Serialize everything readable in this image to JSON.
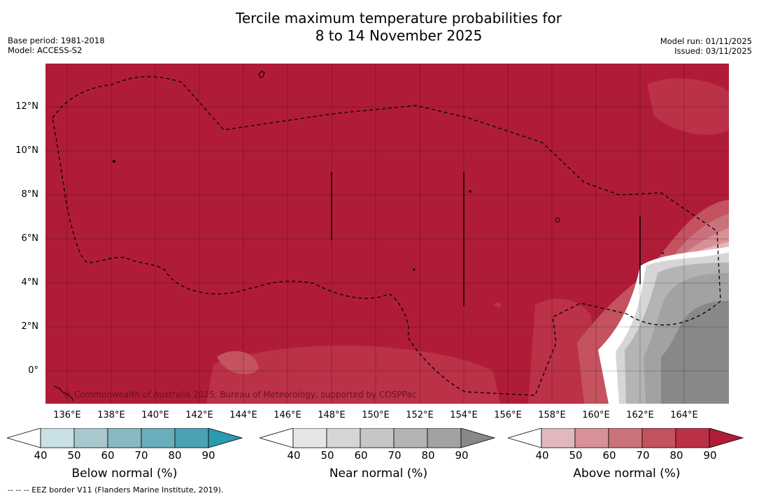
{
  "title_line1": "Tercile maximum temperature probabilities for",
  "title_line2": "8 to 14 November 2025",
  "base_period": "Base period: 1981-2018",
  "model": "Model: ACCESS-S2",
  "model_run": "Model run: 01/11/2025",
  "issued": "Issued: 03/11/2025",
  "copyright": "© Commonwealth of Australia 2025, Bureau of Meteorology, supported by COSPPac",
  "lat_labels": [
    "12°N",
    "10°N",
    "8°N",
    "6°N",
    "4°N",
    "2°N",
    "0°"
  ],
  "lon_labels": [
    "136°E",
    "138°E",
    "140°E",
    "142°E",
    "144°E",
    "146°E",
    "148°E",
    "150°E",
    "152°E",
    "154°E",
    "156°E",
    "158°E",
    "160°E",
    "162°E",
    "164°E"
  ],
  "colorbars": [
    {
      "name": "below",
      "title": "Below normal (%)",
      "ticks": [
        "40",
        "50",
        "60",
        "70",
        "80",
        "90"
      ],
      "colors": [
        "#ffffff",
        "#c8e0e6",
        "#a8c8cd",
        "#88b8c2",
        "#6aaebc",
        "#4aa2b2",
        "#2a9aae"
      ]
    },
    {
      "name": "near",
      "title": "Near normal (%)",
      "ticks": [
        "40",
        "50",
        "60",
        "70",
        "80",
        "90"
      ],
      "colors": [
        "#ffffff",
        "#e6e6e6",
        "#d6d6d6",
        "#c6c6c6",
        "#b4b4b4",
        "#a2a2a2",
        "#888888"
      ]
    },
    {
      "name": "above",
      "title": "Above normal (%)",
      "ticks": [
        "40",
        "50",
        "60",
        "70",
        "80",
        "90"
      ],
      "colors": [
        "#ffffff",
        "#e2b8bd",
        "#d89198",
        "#ca727b",
        "#c4525f",
        "#bb3148",
        "#b01c38"
      ]
    }
  ],
  "eez_note": "--  --  -- EEZ border V11 (Flanders Marine Institute, 2019)."
}
